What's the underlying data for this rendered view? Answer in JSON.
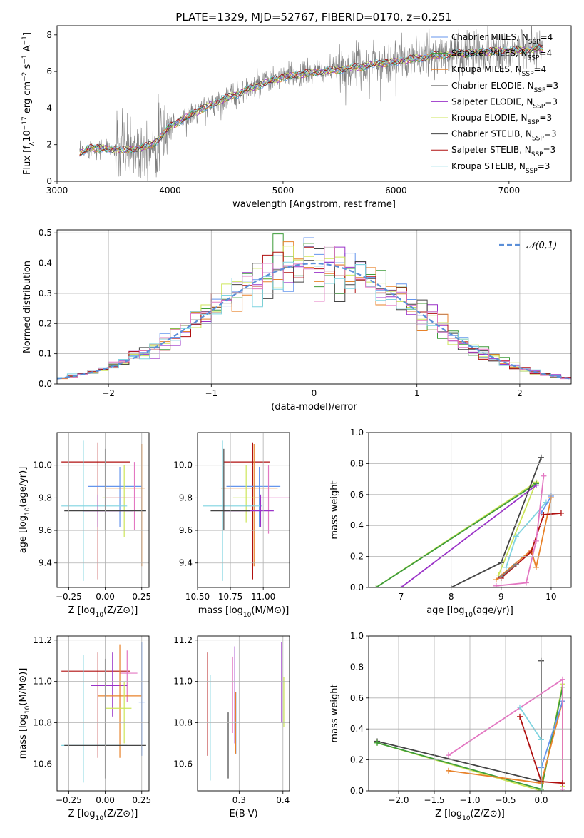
{
  "figure": {
    "title": "PLATE=1329, MJD=52767, FIBERID=0170, z=0.251"
  },
  "colors": {
    "chabrier_miles": "#6495ed",
    "salpeter_miles": "#3e9c3a",
    "kroupa_miles": "#e8822a",
    "chabrier_elodie": "#7f7f7f",
    "salpeter_elodie": "#9a32c8",
    "kroupa_elodie": "#cde65a",
    "chabrier_stelib": "#444444",
    "salpeter_stelib": "#b01010",
    "kroupa_stelib": "#7fd4e0",
    "pink": "#e377c2",
    "gaussian": "#5b8fd8"
  },
  "chart_data": [
    {
      "id": "spectrum",
      "type": "line",
      "title": "PLATE=1329, MJD=52767, FIBERID=0170, z=0.251",
      "xlabel": "wavelength [Angstrom, rest frame]",
      "ylabel": "Flux [f_λ10^-17 erg cm^-2 s^-1 A^-1]",
      "xlim": [
        3000,
        7550
      ],
      "ylim": [
        0,
        8.5
      ],
      "xticks": [
        3000,
        4000,
        5000,
        6000,
        7000
      ],
      "yticks": [
        0,
        2,
        4,
        6,
        8
      ],
      "grid": false,
      "legend_position": "top-right",
      "legend": [
        "Chabrier MILES, N_SSP=4",
        "Salpeter MILES, N_SSP=4",
        "Kroupa MILES, N_SSP=4",
        "Chabrier ELODIE, N_SSP=3",
        "Salpeter ELODIE, N_SSP=3",
        "Kroupa ELODIE, N_SSP=3",
        "Chabrier STELIB, N_SSP=3",
        "Salpeter STELIB, N_SSP=3",
        "Kroupa STELIB, N_SSP=3"
      ],
      "continuum": {
        "x": [
          3200,
          3300,
          3400,
          3500,
          3600,
          3700,
          3800,
          3900,
          4000,
          4200,
          4400,
          4600,
          4800,
          5000,
          5200,
          5400,
          5600,
          5800,
          6000,
          6200,
          6400,
          6600,
          6800,
          7000,
          7200,
          7300
        ],
        "y": [
          1.5,
          1.85,
          1.8,
          1.75,
          1.7,
          1.8,
          1.9,
          2.3,
          3.0,
          3.7,
          4.3,
          4.8,
          5.3,
          5.7,
          5.9,
          6.05,
          6.2,
          6.4,
          6.55,
          6.75,
          6.9,
          7.0,
          7.1,
          7.15,
          7.2,
          7.25
        ]
      },
      "data_noise_sigma": [
        {
          "from": 3200,
          "to": 3500,
          "sigma": 0.25
        },
        {
          "from": 3500,
          "to": 4000,
          "sigma": 0.9
        },
        {
          "from": 4000,
          "to": 5500,
          "sigma": 0.35
        },
        {
          "from": 5500,
          "to": 7300,
          "sigma": 0.6
        }
      ]
    },
    {
      "id": "residual-hist",
      "type": "line",
      "xlabel": "(data-model)/error",
      "ylabel": "Normed distribution",
      "xlim": [
        -2.5,
        2.5
      ],
      "ylim": [
        0,
        0.51
      ],
      "xticks": [
        -2,
        -1,
        0,
        1,
        2
      ],
      "yticks": [
        0.0,
        0.1,
        0.2,
        0.3,
        0.4,
        0.5
      ],
      "grid": true,
      "legend_position": "top-right",
      "legend": [
        "𝒩(0,1)"
      ],
      "bin_width": 0.1,
      "bin_start": -2.5,
      "n_bins": 50
    },
    {
      "id": "age-vs-Z",
      "type": "scatter",
      "xlabel": "Z [log10(Z/Z⊙)]",
      "ylabel": "age  [log10(age/yr)]",
      "xlim": [
        -0.33,
        0.3
      ],
      "ylim": [
        9.25,
        10.2
      ],
      "xticks": [
        -0.25,
        0.0,
        0.25
      ],
      "yticks": [
        9.4,
        9.6,
        9.8,
        10.0
      ],
      "grid": true,
      "points": [
        {
          "c": "salpeter_stelib",
          "x": -0.05,
          "xerr": [
            0.25,
            0.22
          ],
          "y": 10.02,
          "yerr": [
            0.72,
            0.12
          ]
        },
        {
          "c": "chabrier_miles",
          "x": 0.1,
          "xerr": [
            0.22,
            0.15
          ],
          "y": 9.87,
          "yerr": [
            0.25,
            0.12
          ]
        },
        {
          "c": "kroupa_miles",
          "x": 0.25,
          "xerr": [
            0.25,
            0.02
          ],
          "y": 9.86,
          "yerr": [
            0.48,
            0.27
          ]
        },
        {
          "c": "kroupa_elodie",
          "x": 0.13,
          "xerr": [
            0.15,
            0.05
          ],
          "y": 9.8,
          "yerr": [
            0.24,
            0.2
          ]
        },
        {
          "c": "pink",
          "x": 0.2,
          "xerr": [
            0.2,
            0.05
          ],
          "y": 9.8,
          "yerr": [
            0.2,
            0.22
          ]
        },
        {
          "c": "kroupa_stelib",
          "x": -0.15,
          "xerr": [
            0.15,
            0.3
          ],
          "y": 9.75,
          "yerr": [
            0.46,
            0.4
          ]
        },
        {
          "c": "salpeter_elodie",
          "x": -0.05,
          "xerr": [
            0.1,
            0.24
          ],
          "y": 9.72,
          "yerr": [
            0.1,
            0.1
          ]
        },
        {
          "c": "chabrier_stelib",
          "x": 0.0,
          "xerr": [
            0.28,
            0.28
          ],
          "y": 9.72,
          "yerr": [
            0.12,
            0.38
          ]
        }
      ]
    },
    {
      "id": "age-vs-mass",
      "type": "scatter",
      "xlabel": "mass [log10(M/M⊙)]",
      "ylabel": "",
      "xlim": [
        10.5,
        11.2
      ],
      "ylim": [
        9.25,
        10.2
      ],
      "xticks": [
        10.5,
        10.75,
        11.0
      ],
      "xticklabels": [
        "10.50",
        "10.75",
        "11.00"
      ],
      "yticks": [
        9.4,
        9.6,
        9.8,
        10.0
      ],
      "grid": true,
      "points": [
        {
          "c": "salpeter_stelib",
          "x": 10.92,
          "xerr": [
            0.22,
            0.13
          ],
          "y": 10.02,
          "yerr": [
            0.72,
            0.12
          ]
        },
        {
          "c": "chabrier_miles",
          "x": 10.97,
          "xerr": [
            0.25,
            0.16
          ],
          "y": 9.87,
          "yerr": [
            0.25,
            0.12
          ]
        },
        {
          "c": "kroupa_miles",
          "x": 10.93,
          "xerr": [
            0.25,
            0.18
          ],
          "y": 9.86,
          "yerr": [
            0.48,
            0.27
          ]
        },
        {
          "c": "kroupa_elodie",
          "x": 10.87,
          "xerr": [
            0.1,
            0.1
          ],
          "y": 9.8,
          "yerr": [
            0.15,
            0.2
          ]
        },
        {
          "c": "pink",
          "x": 11.04,
          "xerr": [
            0.1,
            0.16
          ],
          "y": 9.8,
          "yerr": [
            0.22,
            0.2
          ]
        },
        {
          "c": "kroupa_stelib",
          "x": 10.69,
          "xerr": [
            0.15,
            0.3
          ],
          "y": 9.75,
          "yerr": [
            0.46,
            0.4
          ]
        },
        {
          "c": "salpeter_elodie",
          "x": 10.98,
          "xerr": [
            0.28,
            0.1
          ],
          "y": 9.72,
          "yerr": [
            0.1,
            0.1
          ]
        },
        {
          "c": "chabrier_stelib",
          "x": 10.7,
          "xerr": [
            0.1,
            0.2
          ],
          "y": 9.72,
          "yerr": [
            0.12,
            0.38
          ]
        }
      ]
    },
    {
      "id": "weight-vs-age",
      "type": "line",
      "xlabel": "age  [log10(age/yr)]",
      "ylabel": "mass weight",
      "xlim": [
        6.35,
        10.4
      ],
      "ylim": [
        0,
        1.0
      ],
      "xticks": [
        7,
        8,
        9,
        10
      ],
      "yticks": [
        0.0,
        0.2,
        0.4,
        0.6,
        0.8,
        1.0
      ],
      "grid": true,
      "series": [
        {
          "c": "kroupa_elodie",
          "x": [
            6.5,
            9.7,
            8.95
          ],
          "y": [
            0.0,
            0.68,
            0.08
          ]
        },
        {
          "c": "salpeter_miles",
          "x": [
            6.5,
            9.7
          ],
          "y": [
            0.0,
            0.67
          ]
        },
        {
          "c": "salpeter_elodie",
          "x": [
            7.0,
            9.7
          ],
          "y": [
            0.0,
            0.66
          ]
        },
        {
          "c": "chabrier_stelib",
          "x": [
            8.0,
            9.0,
            9.8
          ],
          "y": [
            0.0,
            0.16,
            0.84
          ]
        },
        {
          "c": "kroupa_stelib",
          "x": [
            9.1,
            9.3,
            9.9
          ],
          "y": [
            0.13,
            0.33,
            0.55
          ]
        },
        {
          "c": "chabrier_miles",
          "x": [
            9.8,
            10.0
          ],
          "y": [
            0.48,
            0.59
          ]
        },
        {
          "c": "kroupa_miles",
          "x": [
            8.9,
            9.6,
            9.7,
            10.0
          ],
          "y": [
            0.05,
            0.24,
            0.13,
            0.58
          ]
        },
        {
          "c": "salpeter_stelib",
          "x": [
            9.0,
            9.6,
            9.85,
            10.2
          ],
          "y": [
            0.06,
            0.23,
            0.47,
            0.48
          ]
        },
        {
          "c": "pink",
          "x": [
            8.9,
            9.5,
            9.7,
            9.85
          ],
          "y": [
            0.01,
            0.03,
            0.3,
            0.72
          ]
        },
        {
          "c": "chabrier_elodie",
          "x": [
            9.0,
            9.3
          ],
          "y": [
            0.07,
            0.15
          ]
        }
      ]
    },
    {
      "id": "mass-vs-Z",
      "type": "scatter",
      "xlabel": "Z [log10(Z/Z⊙)]",
      "ylabel": "mass [log10(M/M⊙)]",
      "xlim": [
        -0.33,
        0.3
      ],
      "ylim": [
        10.47,
        11.22
      ],
      "xticks": [
        -0.25,
        0.0,
        0.25
      ],
      "yticks": [
        10.6,
        10.8,
        11.0,
        11.2
      ],
      "grid": true,
      "points": [
        {
          "c": "salpeter_stelib",
          "x": -0.05,
          "xerr": [
            0.25,
            0.22
          ],
          "y": 11.05,
          "yerr": [
            0.42,
            0.09
          ]
        },
        {
          "c": "pink",
          "x": 0.15,
          "xerr": [
            0.05,
            0.07
          ],
          "y": 11.04,
          "yerr": [
            0.14,
            0.11
          ]
        },
        {
          "c": "salpeter_elodie",
          "x": 0.05,
          "xerr": [
            0.15,
            0.1
          ],
          "y": 10.98,
          "yerr": [
            0.15,
            0.16
          ]
        },
        {
          "c": "kroupa_miles",
          "x": 0.1,
          "xerr": [
            0.15,
            0.15
          ],
          "y": 10.93,
          "yerr": [
            0.3,
            0.25
          ]
        },
        {
          "c": "kroupa_elodie",
          "x": 0.13,
          "xerr": [
            0.13,
            0.05
          ],
          "y": 10.87,
          "yerr": [
            0.17,
            0.13
          ]
        },
        {
          "c": "chabrier_miles",
          "x": 0.25,
          "xerr": [
            0.02,
            0.02
          ],
          "y": 10.9,
          "yerr": [
            0.26,
            0.29
          ]
        },
        {
          "c": "kroupa_stelib",
          "x": -0.15,
          "xerr": [
            0.15,
            0.3
          ],
          "y": 10.69,
          "yerr": [
            0.18,
            0.44
          ]
        },
        {
          "c": "chabrier_stelib",
          "x": 0.0,
          "xerr": [
            0.28,
            0.28
          ],
          "y": 10.69,
          "yerr": [
            0.16,
            0.42
          ]
        }
      ]
    },
    {
      "id": "mass-vs-ebv",
      "type": "scatter",
      "xlabel": "E(B-V)",
      "ylabel": "",
      "xlim": [
        0.205,
        0.415
      ],
      "ylim": [
        10.47,
        11.22
      ],
      "xticks": [
        0.3,
        0.4
      ],
      "yticks": [
        10.6,
        10.8,
        11.0,
        11.2
      ],
      "grid": true,
      "points": [
        {
          "c": "salpeter_stelib",
          "x": 0.228,
          "xerr": [
            0,
            0
          ],
          "y": 10.9,
          "yerr": [
            0.26,
            0.24
          ]
        },
        {
          "c": "kroupa_stelib",
          "x": 0.234,
          "xerr": [
            0,
            0
          ],
          "y": 10.8,
          "yerr": [
            0.28,
            0.23
          ]
        },
        {
          "c": "chabrier_stelib",
          "x": 0.275,
          "xerr": [
            0,
            0
          ],
          "y": 10.75,
          "yerr": [
            0.22,
            0.1
          ]
        },
        {
          "c": "pink",
          "x": 0.285,
          "xerr": [
            0,
            0
          ],
          "y": 10.95,
          "yerr": [
            0.2,
            0.17
          ]
        },
        {
          "c": "salpeter_elodie",
          "x": 0.29,
          "xerr": [
            0,
            0
          ],
          "y": 10.95,
          "yerr": [
            0.25,
            0.22
          ]
        },
        {
          "c": "kroupa_miles",
          "x": 0.292,
          "xerr": [
            0,
            0
          ],
          "y": 10.85,
          "yerr": [
            0.2,
            0.1
          ]
        },
        {
          "c": "chabrier_miles",
          "x": 0.295,
          "xerr": [
            0,
            0
          ],
          "y": 10.85,
          "yerr": [
            0.2,
            0.1
          ]
        },
        {
          "c": "salpeter_elodie",
          "x": 0.397,
          "xerr": [
            0,
            0
          ],
          "y": 10.96,
          "yerr": [
            0.16,
            0.23
          ]
        },
        {
          "c": "kroupa_elodie",
          "x": 0.402,
          "xerr": [
            0,
            0
          ],
          "y": 10.88,
          "yerr": [
            0.1,
            0.14
          ]
        }
      ]
    },
    {
      "id": "weight-vs-Z",
      "type": "line",
      "xlabel": "Z [log10(Z/Z⊙)]",
      "ylabel": "mass weight",
      "xlim": [
        -2.42,
        0.42
      ],
      "ylim": [
        0,
        1.0
      ],
      "xticks": [
        -2.0,
        -1.5,
        -1.0,
        -0.5,
        0.0
      ],
      "yticks": [
        0.0,
        0.2,
        0.4,
        0.6,
        0.8,
        1.0
      ],
      "grid": true,
      "series": [
        {
          "c": "chabrier_stelib",
          "x": [
            -2.3,
            0.0,
            0.0
          ],
          "y": [
            0.32,
            0.06,
            0.84
          ]
        },
        {
          "c": "kroupa_elodie",
          "x": [
            -2.3,
            0.0,
            0.3,
            0.3
          ],
          "y": [
            0.31,
            0.0,
            0.69,
            0.03
          ]
        },
        {
          "c": "salpeter_miles",
          "x": [
            -2.3,
            0.0,
            0.3
          ],
          "y": [
            0.31,
            0.01,
            0.67
          ]
        },
        {
          "c": "kroupa_miles",
          "x": [
            -1.3,
            0.0,
            0.3,
            0.3
          ],
          "y": [
            0.13,
            0.05,
            0.58,
            0.05
          ]
        },
        {
          "c": "chabrier_miles",
          "x": [
            0.0,
            0.3
          ],
          "y": [
            0.15,
            0.58
          ]
        },
        {
          "c": "pink",
          "x": [
            -1.3,
            0.3,
            0.3
          ],
          "y": [
            0.23,
            0.72,
            0.01
          ]
        },
        {
          "c": "kroupa_stelib",
          "x": [
            -0.3,
            0.0,
            0.0
          ],
          "y": [
            0.54,
            0.33,
            0.0
          ]
        },
        {
          "c": "salpeter_stelib",
          "x": [
            -0.3,
            0.0,
            0.3
          ],
          "y": [
            0.48,
            0.06,
            0.05
          ]
        }
      ]
    }
  ]
}
